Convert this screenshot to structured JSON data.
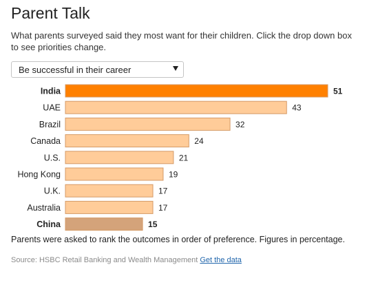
{
  "header": {
    "title": "Parent Talk",
    "subtitle": "What parents surveyed said they most want for their children. Click the drop down box to see priorities change."
  },
  "dropdown": {
    "selected": "Be successful in their career"
  },
  "colors": {
    "highest_bar": "#ff8000",
    "lowest_bar": "#d4a37a",
    "default_bar": "#ffcc99",
    "bar_border": "#d49a66"
  },
  "chart_data": {
    "type": "bar",
    "orientation": "horizontal",
    "categories": [
      "India",
      "UAE",
      "Brazil",
      "Canada",
      "U.S.",
      "Hong Kong",
      "U.K.",
      "Australia",
      "China"
    ],
    "values": [
      51,
      43,
      32,
      24,
      21,
      19,
      17,
      17,
      15
    ],
    "highlight": {
      "highest": "India",
      "lowest": "China"
    },
    "xlim": [
      0,
      51
    ],
    "grid": false,
    "legend": "none",
    "data_labels": true
  },
  "footnote": "Parents were asked to rank the outcomes in order of preference. Figures in percentage.",
  "source": {
    "text": "Source: HSBC Retail Banking and Wealth Management",
    "link_label": "Get the data"
  }
}
